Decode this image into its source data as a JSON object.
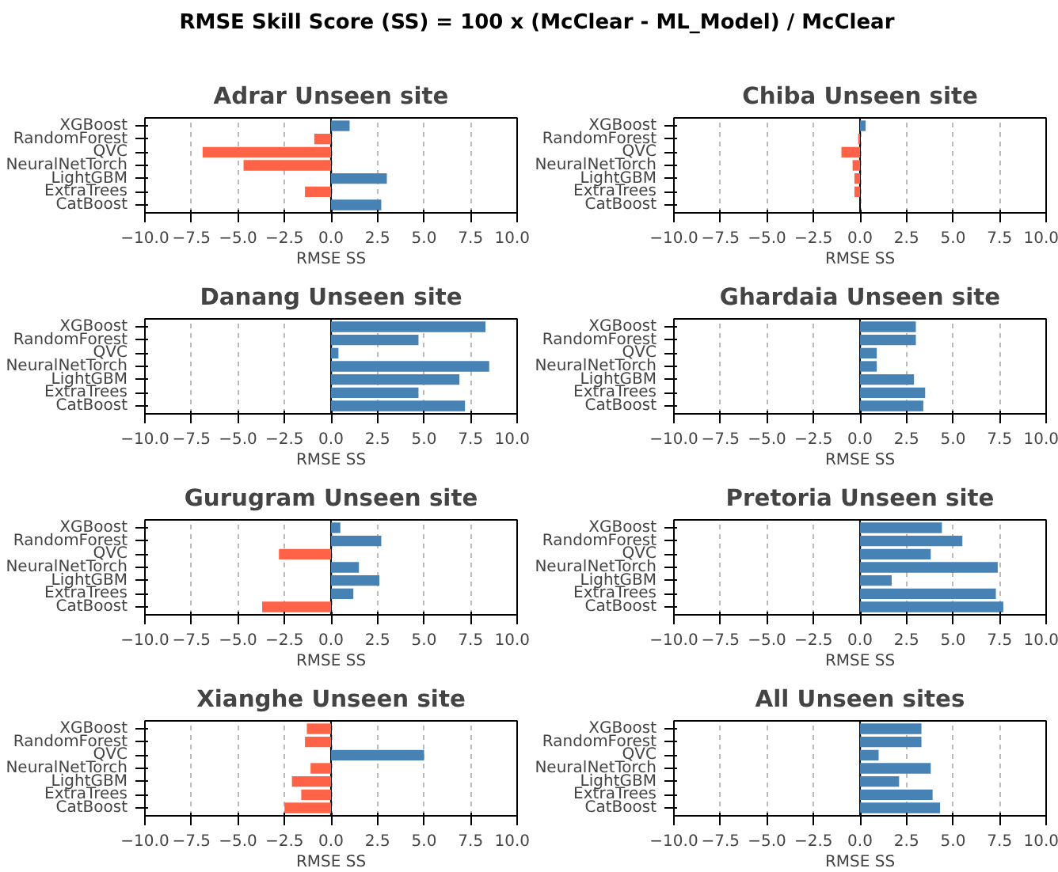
{
  "chart_data": [
    {
      "type": "other",
      "title": "RMSE Skill Score (SS) = 100 x (McClear - ML_Model) / McClear"
    },
    {
      "type": "bar",
      "orientation": "horizontal",
      "title": "Adrar Unseen site",
      "xlabel": "RMSE SS",
      "categories": [
        "XGBoost",
        "RandomForest",
        "QVC",
        "NeuralNetTorch",
        "LightGBM",
        "ExtraTrees",
        "CatBoost"
      ],
      "values": [
        1.0,
        -0.9,
        -6.9,
        -4.7,
        3.0,
        -1.4,
        2.7
      ],
      "colors": [
        "#4682b4",
        "#ff6347",
        "#ff6347",
        "#ff6347",
        "#4682b4",
        "#ff6347",
        "#4682b4"
      ],
      "xlim": [
        -10,
        10
      ],
      "xticks": [
        {
          "value": -10,
          "label": "−10.0"
        },
        {
          "value": -7.5,
          "label": "−7.5"
        },
        {
          "value": -5,
          "label": "−5.0"
        },
        {
          "value": -2.5,
          "label": "−2.5"
        },
        {
          "value": 0,
          "label": "0.0"
        },
        {
          "value": 2.5,
          "label": "2.5"
        },
        {
          "value": 5,
          "label": "5.0"
        },
        {
          "value": 7.5,
          "label": "7.5"
        },
        {
          "value": 10,
          "label": "10.0"
        }
      ],
      "grid": "x",
      "ref_lines": [
        {
          "axis": "x",
          "value": 0,
          "color": "#000000"
        }
      ]
    },
    {
      "type": "bar",
      "orientation": "horizontal",
      "title": "Chiba Unseen site",
      "xlabel": "RMSE SS",
      "categories": [
        "XGBoost",
        "RandomForest",
        "QVC",
        "NeuralNetTorch",
        "LightGBM",
        "ExtraTrees",
        "CatBoost"
      ],
      "values": [
        0.3,
        -0.1,
        -1.0,
        -0.4,
        -0.3,
        -0.3,
        0.0
      ],
      "colors": [
        "#4682b4",
        "#ff6347",
        "#ff6347",
        "#ff6347",
        "#ff6347",
        "#ff6347",
        "#4682b4"
      ],
      "xlim": [
        -10,
        10
      ],
      "xticks": [
        {
          "value": -10,
          "label": "−10.0"
        },
        {
          "value": -7.5,
          "label": "−7.5"
        },
        {
          "value": -5,
          "label": "−5.0"
        },
        {
          "value": -2.5,
          "label": "−2.5"
        },
        {
          "value": 0,
          "label": "0.0"
        },
        {
          "value": 2.5,
          "label": "2.5"
        },
        {
          "value": 5,
          "label": "5.0"
        },
        {
          "value": 7.5,
          "label": "7.5"
        },
        {
          "value": 10,
          "label": "10.0"
        }
      ],
      "grid": "x",
      "ref_lines": [
        {
          "axis": "x",
          "value": 0,
          "color": "#000000"
        }
      ]
    },
    {
      "type": "bar",
      "orientation": "horizontal",
      "title": "Danang Unseen site",
      "xlabel": "RMSE SS",
      "categories": [
        "XGBoost",
        "RandomForest",
        "QVC",
        "NeuralNetTorch",
        "LightGBM",
        "ExtraTrees",
        "CatBoost"
      ],
      "values": [
        8.3,
        4.7,
        0.4,
        8.5,
        6.9,
        4.7,
        7.2
      ],
      "colors": [
        "#4682b4",
        "#4682b4",
        "#4682b4",
        "#4682b4",
        "#4682b4",
        "#4682b4",
        "#4682b4"
      ],
      "xlim": [
        -10,
        10
      ],
      "xticks": [
        {
          "value": -10,
          "label": "−10.0"
        },
        {
          "value": -7.5,
          "label": "−7.5"
        },
        {
          "value": -5,
          "label": "−5.0"
        },
        {
          "value": -2.5,
          "label": "−2.5"
        },
        {
          "value": 0,
          "label": "0.0"
        },
        {
          "value": 2.5,
          "label": "2.5"
        },
        {
          "value": 5,
          "label": "5.0"
        },
        {
          "value": 7.5,
          "label": "7.5"
        },
        {
          "value": 10,
          "label": "10.0"
        }
      ],
      "grid": "x",
      "ref_lines": [
        {
          "axis": "x",
          "value": 0,
          "color": "#000000"
        }
      ]
    },
    {
      "type": "bar",
      "orientation": "horizontal",
      "title": "Ghardaia Unseen site",
      "xlabel": "RMSE SS",
      "categories": [
        "XGBoost",
        "RandomForest",
        "QVC",
        "NeuralNetTorch",
        "LightGBM",
        "ExtraTrees",
        "CatBoost"
      ],
      "values": [
        3.0,
        3.0,
        0.9,
        0.9,
        2.9,
        3.5,
        3.4
      ],
      "colors": [
        "#4682b4",
        "#4682b4",
        "#4682b4",
        "#4682b4",
        "#4682b4",
        "#4682b4",
        "#4682b4"
      ],
      "xlim": [
        -10,
        10
      ],
      "xticks": [
        {
          "value": -10,
          "label": "−10.0"
        },
        {
          "value": -7.5,
          "label": "−7.5"
        },
        {
          "value": -5,
          "label": "−5.0"
        },
        {
          "value": -2.5,
          "label": "−2.5"
        },
        {
          "value": 0,
          "label": "0.0"
        },
        {
          "value": 2.5,
          "label": "2.5"
        },
        {
          "value": 5,
          "label": "5.0"
        },
        {
          "value": 7.5,
          "label": "7.5"
        },
        {
          "value": 10,
          "label": "10.0"
        }
      ],
      "grid": "x",
      "ref_lines": [
        {
          "axis": "x",
          "value": 0,
          "color": "#000000"
        }
      ]
    },
    {
      "type": "bar",
      "orientation": "horizontal",
      "title": "Gurugram Unseen site",
      "xlabel": "RMSE SS",
      "categories": [
        "XGBoost",
        "RandomForest",
        "QVC",
        "NeuralNetTorch",
        "LightGBM",
        "ExtraTrees",
        "CatBoost"
      ],
      "values": [
        0.5,
        2.7,
        -2.8,
        1.5,
        2.6,
        1.2,
        -3.7
      ],
      "colors": [
        "#4682b4",
        "#4682b4",
        "#ff6347",
        "#4682b4",
        "#4682b4",
        "#4682b4",
        "#ff6347"
      ],
      "xlim": [
        -10,
        10
      ],
      "xticks": [
        {
          "value": -10,
          "label": "−10.0"
        },
        {
          "value": -7.5,
          "label": "−7.5"
        },
        {
          "value": -5,
          "label": "−5.0"
        },
        {
          "value": -2.5,
          "label": "−2.5"
        },
        {
          "value": 0,
          "label": "0.0"
        },
        {
          "value": 2.5,
          "label": "2.5"
        },
        {
          "value": 5,
          "label": "5.0"
        },
        {
          "value": 7.5,
          "label": "7.5"
        },
        {
          "value": 10,
          "label": "10.0"
        }
      ],
      "grid": "x",
      "ref_lines": [
        {
          "axis": "x",
          "value": 0,
          "color": "#000000"
        }
      ]
    },
    {
      "type": "bar",
      "orientation": "horizontal",
      "title": "Pretoria Unseen site",
      "xlabel": "RMSE SS",
      "categories": [
        "XGBoost",
        "RandomForest",
        "QVC",
        "NeuralNetTorch",
        "LightGBM",
        "ExtraTrees",
        "CatBoost"
      ],
      "values": [
        4.4,
        5.5,
        3.8,
        7.4,
        1.7,
        7.3,
        7.7
      ],
      "colors": [
        "#4682b4",
        "#4682b4",
        "#4682b4",
        "#4682b4",
        "#4682b4",
        "#4682b4",
        "#4682b4"
      ],
      "xlim": [
        -10,
        10
      ],
      "xticks": [
        {
          "value": -10,
          "label": "−10.0"
        },
        {
          "value": -7.5,
          "label": "−7.5"
        },
        {
          "value": -5,
          "label": "−5.0"
        },
        {
          "value": -2.5,
          "label": "−2.5"
        },
        {
          "value": 0,
          "label": "0.0"
        },
        {
          "value": 2.5,
          "label": "2.5"
        },
        {
          "value": 5,
          "label": "5.0"
        },
        {
          "value": 7.5,
          "label": "7.5"
        },
        {
          "value": 10,
          "label": "10.0"
        }
      ],
      "grid": "x",
      "ref_lines": [
        {
          "axis": "x",
          "value": 0,
          "color": "#000000"
        }
      ]
    },
    {
      "type": "bar",
      "orientation": "horizontal",
      "title": "Xianghe Unseen site",
      "xlabel": "RMSE SS",
      "categories": [
        "XGBoost",
        "RandomForest",
        "QVC",
        "NeuralNetTorch",
        "LightGBM",
        "ExtraTrees",
        "CatBoost"
      ],
      "values": [
        -1.3,
        -1.4,
        5.0,
        -1.1,
        -2.1,
        -1.6,
        -2.5
      ],
      "colors": [
        "#ff6347",
        "#ff6347",
        "#4682b4",
        "#ff6347",
        "#ff6347",
        "#ff6347",
        "#ff6347"
      ],
      "xlim": [
        -10,
        10
      ],
      "xticks": [
        {
          "value": -10,
          "label": "−10.0"
        },
        {
          "value": -7.5,
          "label": "−7.5"
        },
        {
          "value": -5,
          "label": "−5.0"
        },
        {
          "value": -2.5,
          "label": "−2.5"
        },
        {
          "value": 0,
          "label": "0.0"
        },
        {
          "value": 2.5,
          "label": "2.5"
        },
        {
          "value": 5,
          "label": "5.0"
        },
        {
          "value": 7.5,
          "label": "7.5"
        },
        {
          "value": 10,
          "label": "10.0"
        }
      ],
      "grid": "x",
      "ref_lines": [
        {
          "axis": "x",
          "value": 0,
          "color": "#000000"
        }
      ]
    },
    {
      "type": "bar",
      "orientation": "horizontal",
      "title": "All Unseen sites",
      "xlabel": "RMSE SS",
      "categories": [
        "XGBoost",
        "RandomForest",
        "QVC",
        "NeuralNetTorch",
        "LightGBM",
        "ExtraTrees",
        "CatBoost"
      ],
      "values": [
        3.3,
        3.3,
        1.0,
        3.8,
        2.1,
        3.9,
        4.3
      ],
      "colors": [
        "#4682b4",
        "#4682b4",
        "#4682b4",
        "#4682b4",
        "#4682b4",
        "#4682b4",
        "#4682b4"
      ],
      "xlim": [
        -10,
        10
      ],
      "xticks": [
        {
          "value": -10,
          "label": "−10.0"
        },
        {
          "value": -7.5,
          "label": "−7.5"
        },
        {
          "value": -5,
          "label": "−5.0"
        },
        {
          "value": -2.5,
          "label": "−2.5"
        },
        {
          "value": 0,
          "label": "0.0"
        },
        {
          "value": 2.5,
          "label": "2.5"
        },
        {
          "value": 5,
          "label": "5.0"
        },
        {
          "value": 7.5,
          "label": "7.5"
        },
        {
          "value": 10,
          "label": "10.0"
        }
      ],
      "grid": "x",
      "ref_lines": [
        {
          "axis": "x",
          "value": 0,
          "color": "#000000"
        }
      ]
    }
  ]
}
